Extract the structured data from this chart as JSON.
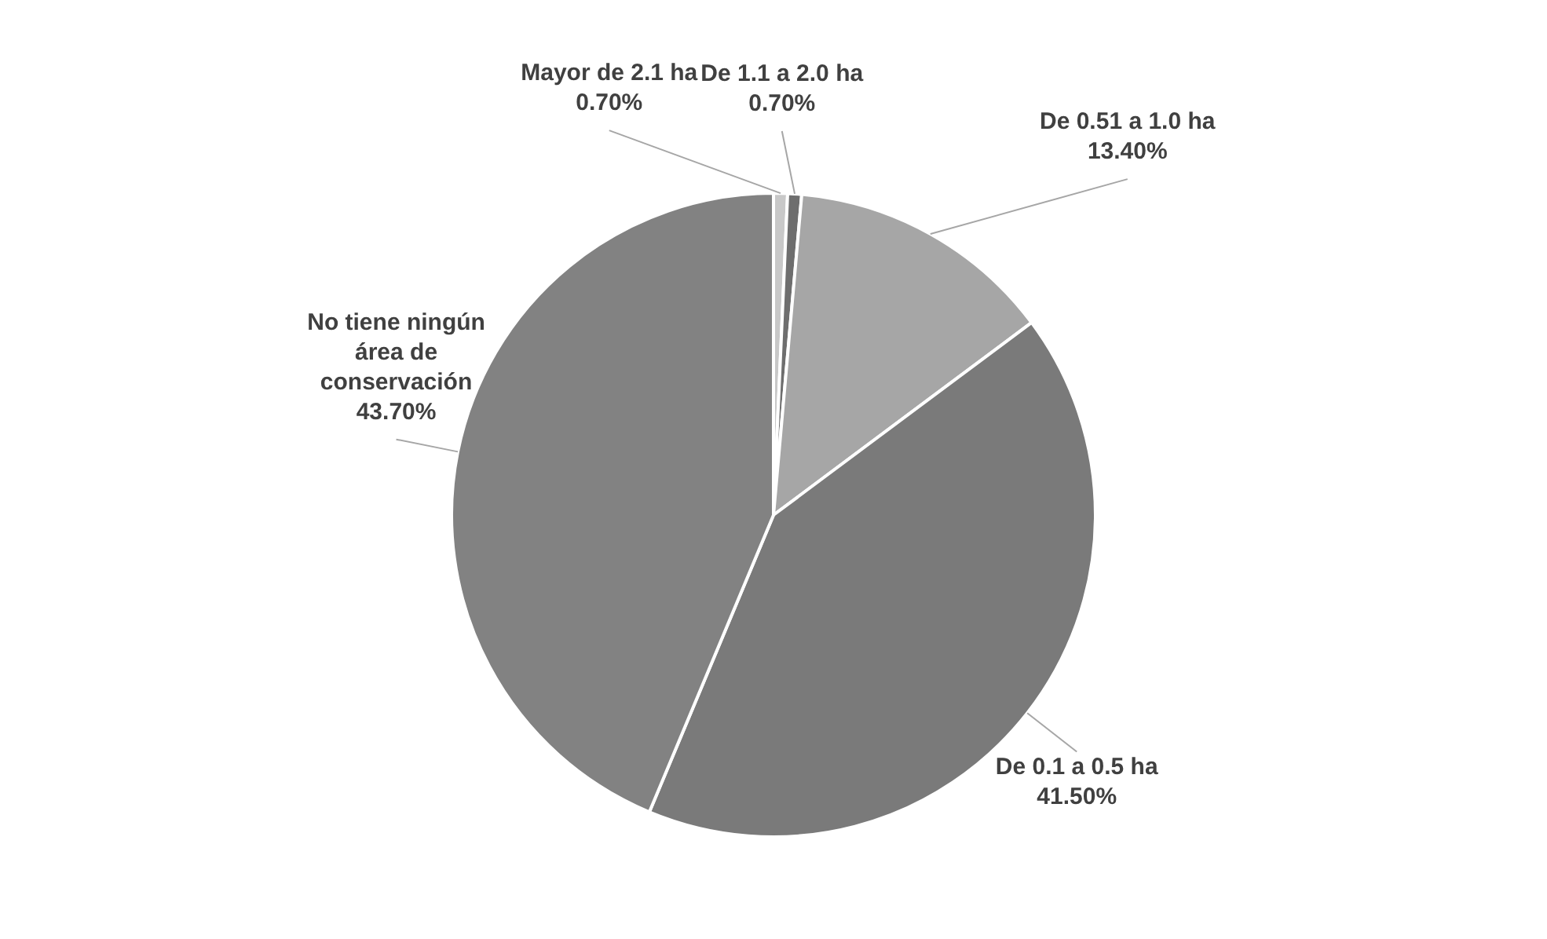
{
  "chart_data": {
    "type": "pie",
    "categories": [
      "Mayor de 2.1 ha",
      "De 1.1 a 2.0 ha",
      "De 0.51 a 1.0 ha",
      "De 0.1 a 0.5 ha",
      "No tiene ningún área de conservación"
    ],
    "values": [
      0.7,
      0.7,
      13.4,
      41.5,
      43.7
    ],
    "value_labels": [
      "0.70%",
      "0.70%",
      "13.40%",
      "41.50%",
      "43.70%"
    ],
    "colors": [
      "#c8c8c8",
      "#6e6e6e",
      "#a6a6a6",
      "#7a7a7a",
      "#828282"
    ]
  }
}
